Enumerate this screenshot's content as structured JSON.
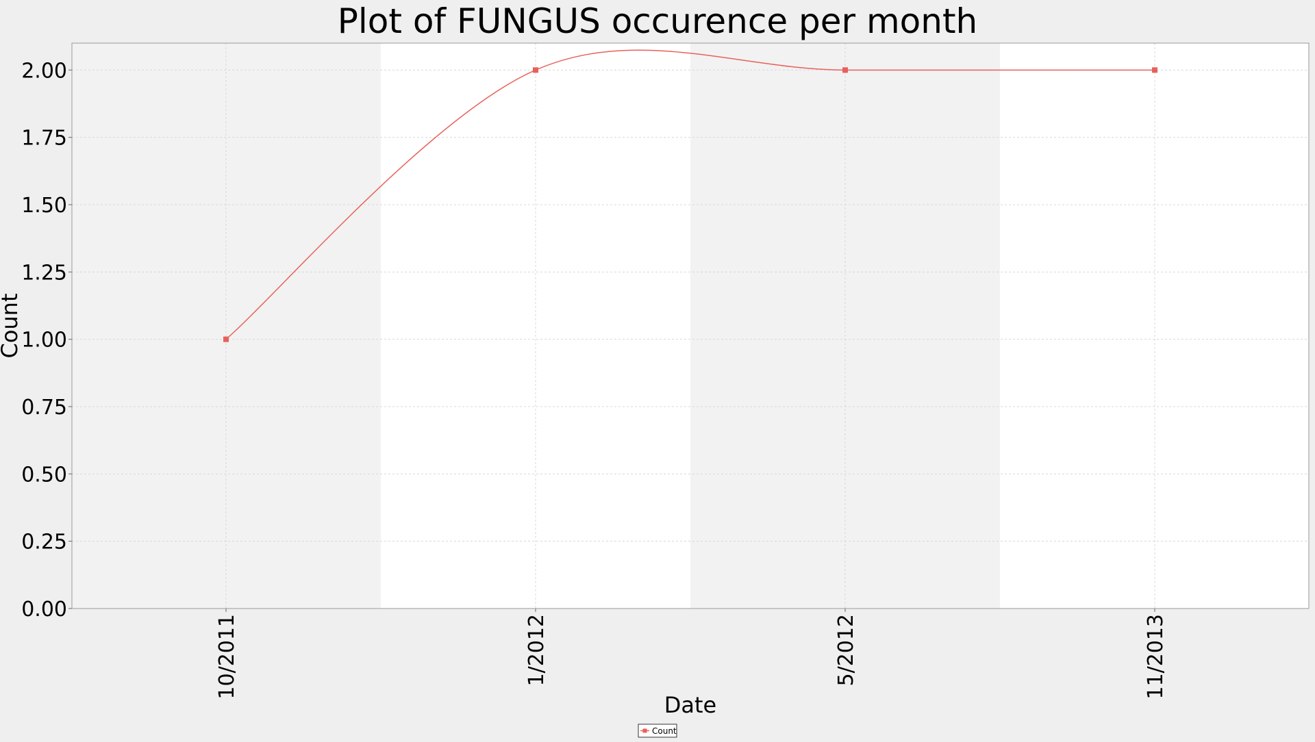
{
  "chart_data": {
    "type": "line",
    "title": "Plot of FUNGUS occurence per month",
    "xlabel": "Date",
    "ylabel": "Count",
    "x": [
      "10/2011",
      "1/2012",
      "5/2012",
      "11/2013"
    ],
    "series": [
      {
        "name": "Count",
        "values": [
          1.0,
          2.0,
          2.0,
          2.0
        ],
        "color": "#e8605a",
        "marker": "square",
        "smoothed": true
      }
    ],
    "x_ticks": [
      "10/2011",
      "1/2012",
      "5/2012",
      "11/2013"
    ],
    "y_ticks": [
      "0.00",
      "0.25",
      "0.50",
      "0.75",
      "1.00",
      "1.25",
      "1.50",
      "1.75",
      "2.00"
    ],
    "ylim": [
      0,
      2.1
    ],
    "grid": true,
    "legend_position": "bottom-center",
    "colors": {
      "page_background": "#efefef",
      "plot_band_shaded": "#f2f2f2",
      "plot_band_plain": "#ffffff",
      "gridline": "#d8d8d8",
      "line": "#e8605a"
    }
  }
}
